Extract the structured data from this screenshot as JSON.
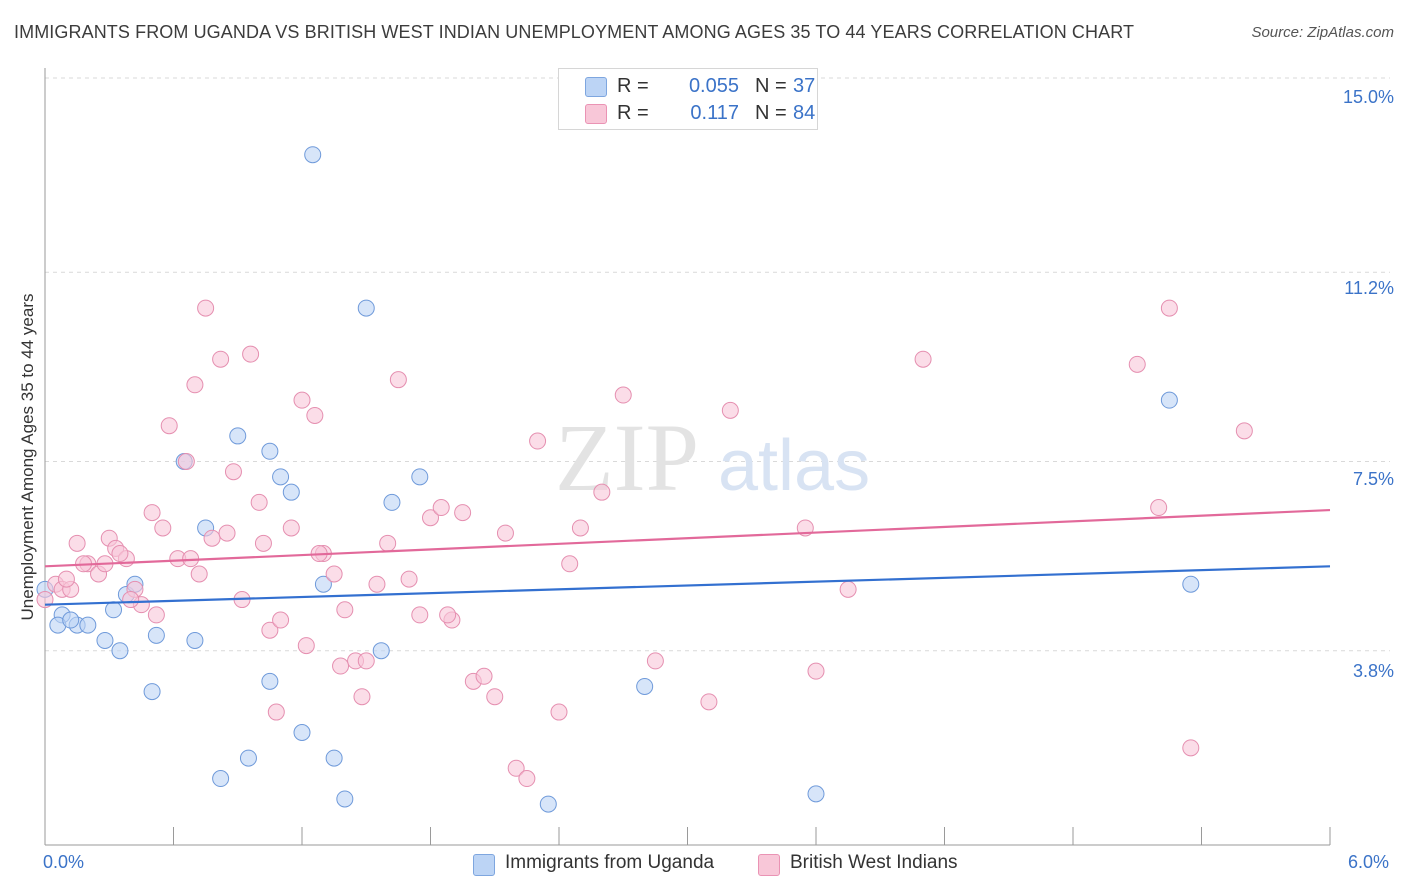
{
  "title": "IMMIGRANTS FROM UGANDA VS BRITISH WEST INDIAN UNEMPLOYMENT AMONG AGES 35 TO 44 YEARS CORRELATION CHART",
  "source": "Source: ZipAtlas.com",
  "watermark": {
    "zip": "ZIP",
    "atlas": "atlas"
  },
  "colors": {
    "blue": "#3370d0",
    "blue_fill": "#bcd4f5",
    "pink": "#e2699a",
    "pink_fill": "#f8c7d8",
    "tick_text": "#3b73c8"
  },
  "legend_top": {
    "rows": [
      {
        "r_label": "R =",
        "r_value": "0.055",
        "n_label": "N =",
        "n_value": "37"
      },
      {
        "r_label": "R =",
        "r_value": "0.117",
        "n_label": "N =",
        "n_value": "84"
      }
    ]
  },
  "legend_bottom": [
    {
      "label": "Immigrants from Uganda"
    },
    {
      "label": "British West Indians"
    }
  ],
  "chart_data": {
    "type": "scatter",
    "title": "IMMIGRANTS FROM UGANDA VS BRITISH WEST INDIAN UNEMPLOYMENT AMONG AGES 35 TO 44 YEARS CORRELATION CHART",
    "xlabel": "",
    "ylabel": "Unemployment Among Ages 35 to 44 years",
    "xlim": [
      0.0,
      6.0
    ],
    "ylim": [
      0.0,
      15.0
    ],
    "x_tick_labels": [
      "0.0%",
      "6.0%"
    ],
    "y_ticks": [
      3.8,
      7.5,
      11.2,
      15.0
    ],
    "y_tick_labels": [
      "3.8%",
      "7.5%",
      "11.2%",
      "15.0%"
    ],
    "grid": true,
    "legend_position": "top-center",
    "series": [
      {
        "name": "Immigrants from Uganda",
        "r": 0.055,
        "n": 37,
        "trend": [
          [
            0.0,
            4.7
          ],
          [
            6.0,
            5.45
          ]
        ],
        "points": [
          [
            0.0,
            5.0
          ],
          [
            0.08,
            4.5
          ],
          [
            0.06,
            4.3
          ],
          [
            0.15,
            4.3
          ],
          [
            0.2,
            4.3
          ],
          [
            0.32,
            4.6
          ],
          [
            0.38,
            4.9
          ],
          [
            0.42,
            5.1
          ],
          [
            0.28,
            4.0
          ],
          [
            0.35,
            3.8
          ],
          [
            0.52,
            4.1
          ],
          [
            0.7,
            4.0
          ],
          [
            0.5,
            3.0
          ],
          [
            0.65,
            7.5
          ],
          [
            0.75,
            6.2
          ],
          [
            0.9,
            8.0
          ],
          [
            1.05,
            7.7
          ],
          [
            1.1,
            7.2
          ],
          [
            1.15,
            6.9
          ],
          [
            1.3,
            5.1
          ],
          [
            1.25,
            13.5
          ],
          [
            1.5,
            10.5
          ],
          [
            1.62,
            6.7
          ],
          [
            1.75,
            7.2
          ],
          [
            1.57,
            3.8
          ],
          [
            1.05,
            3.2
          ],
          [
            1.2,
            2.2
          ],
          [
            0.95,
            1.7
          ],
          [
            0.82,
            1.3
          ],
          [
            1.35,
            1.7
          ],
          [
            1.4,
            0.9
          ],
          [
            2.35,
            0.8
          ],
          [
            2.8,
            3.1
          ],
          [
            3.6,
            1.0
          ],
          [
            5.25,
            8.7
          ],
          [
            5.35,
            5.1
          ],
          [
            0.12,
            4.4
          ]
        ]
      },
      {
        "name": "British West Indians",
        "r": 0.117,
        "n": 84,
        "trend": [
          [
            0.0,
            5.45
          ],
          [
            6.0,
            6.55
          ]
        ],
        "points": [
          [
            0.0,
            4.8
          ],
          [
            0.05,
            5.1
          ],
          [
            0.08,
            5.0
          ],
          [
            0.12,
            5.0
          ],
          [
            0.15,
            5.9
          ],
          [
            0.2,
            5.5
          ],
          [
            0.25,
            5.3
          ],
          [
            0.28,
            5.5
          ],
          [
            0.3,
            6.0
          ],
          [
            0.33,
            5.8
          ],
          [
            0.38,
            5.6
          ],
          [
            0.42,
            5.0
          ],
          [
            0.45,
            4.7
          ],
          [
            0.5,
            6.5
          ],
          [
            0.52,
            4.5
          ],
          [
            0.55,
            6.2
          ],
          [
            0.58,
            8.2
          ],
          [
            0.62,
            5.6
          ],
          [
            0.66,
            7.5
          ],
          [
            0.7,
            9.0
          ],
          [
            0.72,
            5.3
          ],
          [
            0.75,
            10.5
          ],
          [
            0.78,
            6.0
          ],
          [
            0.82,
            9.5
          ],
          [
            0.85,
            6.1
          ],
          [
            0.88,
            7.3
          ],
          [
            0.92,
            4.8
          ],
          [
            0.96,
            9.6
          ],
          [
            1.0,
            6.7
          ],
          [
            1.05,
            4.2
          ],
          [
            1.1,
            4.4
          ],
          [
            1.15,
            6.2
          ],
          [
            1.2,
            8.7
          ],
          [
            1.22,
            3.9
          ],
          [
            1.26,
            8.4
          ],
          [
            1.3,
            5.7
          ],
          [
            1.35,
            5.3
          ],
          [
            1.4,
            4.6
          ],
          [
            1.45,
            3.6
          ],
          [
            1.5,
            3.6
          ],
          [
            1.55,
            5.1
          ],
          [
            1.6,
            5.9
          ],
          [
            1.65,
            9.1
          ],
          [
            1.7,
            5.2
          ],
          [
            1.75,
            4.5
          ],
          [
            1.8,
            6.4
          ],
          [
            1.85,
            6.6
          ],
          [
            1.08,
            2.6
          ],
          [
            1.38,
            3.5
          ],
          [
            1.48,
            2.9
          ],
          [
            1.9,
            4.4
          ],
          [
            1.88,
            4.5
          ],
          [
            2.0,
            3.2
          ],
          [
            2.1,
            2.9
          ],
          [
            2.15,
            6.1
          ],
          [
            2.2,
            1.5
          ],
          [
            2.25,
            1.3
          ],
          [
            2.3,
            7.9
          ],
          [
            2.4,
            2.6
          ],
          [
            2.45,
            5.5
          ],
          [
            2.5,
            6.2
          ],
          [
            2.6,
            6.9
          ],
          [
            2.7,
            8.8
          ],
          [
            2.85,
            3.6
          ],
          [
            3.1,
            2.8
          ],
          [
            3.2,
            8.5
          ],
          [
            3.55,
            6.2
          ],
          [
            3.6,
            3.4
          ],
          [
            3.75,
            5.0
          ],
          [
            4.1,
            9.5
          ],
          [
            5.1,
            9.4
          ],
          [
            5.2,
            6.6
          ],
          [
            5.25,
            10.5
          ],
          [
            5.35,
            1.9
          ],
          [
            5.6,
            8.1
          ],
          [
            0.18,
            5.5
          ],
          [
            0.35,
            5.7
          ],
          [
            0.4,
            4.8
          ],
          [
            0.68,
            5.6
          ],
          [
            1.02,
            5.9
          ],
          [
            1.28,
            5.7
          ],
          [
            1.95,
            6.5
          ],
          [
            2.05,
            3.3
          ],
          [
            0.1,
            5.2
          ]
        ]
      }
    ]
  }
}
